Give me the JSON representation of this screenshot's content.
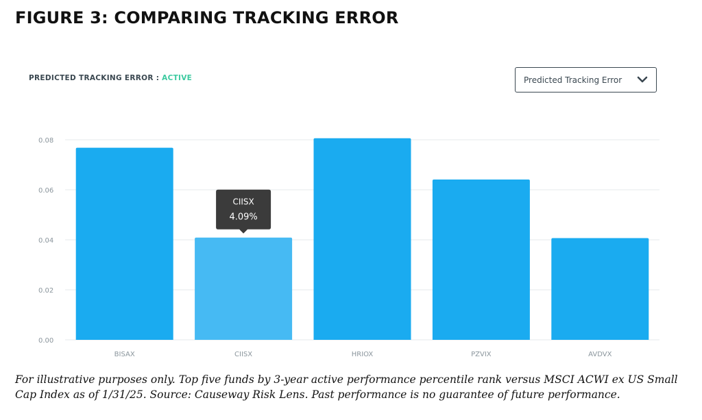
{
  "figure": {
    "title": "FIGURE 3: COMPARING TRACKING ERROR",
    "caption": "For illustrative purposes only. Top five funds by 3-year active performance percentile rank versus MSCI ACWI ex US Small Cap Index as of 1/31/25. Source: Causeway Risk Lens. Past performance is no guarantee of future performance."
  },
  "panel": {
    "label": "PREDICTED TRACKING ERROR",
    "separator": " : ",
    "status": "ACTIVE",
    "status_color": "#3ccaa0"
  },
  "dropdown": {
    "selected": "Predicted Tracking Error",
    "icon": "chevron-down-icon"
  },
  "chart_data": {
    "type": "bar",
    "categories": [
      "BISAX",
      "CIISX",
      "HRIOX",
      "PZVIX",
      "AVDVX"
    ],
    "values": [
      0.0768,
      0.0409,
      0.0806,
      0.0641,
      0.0407
    ],
    "ylim": [
      0,
      0.08
    ],
    "yticks": [
      "0.00",
      "0.02",
      "0.04",
      "0.06",
      "0.08"
    ],
    "grid": true,
    "bar_color": "#1aabf0",
    "highlight_color": "#46baf3",
    "highlight_index": 1,
    "tooltip": {
      "label": "CIISX",
      "value": "4.09%"
    }
  }
}
